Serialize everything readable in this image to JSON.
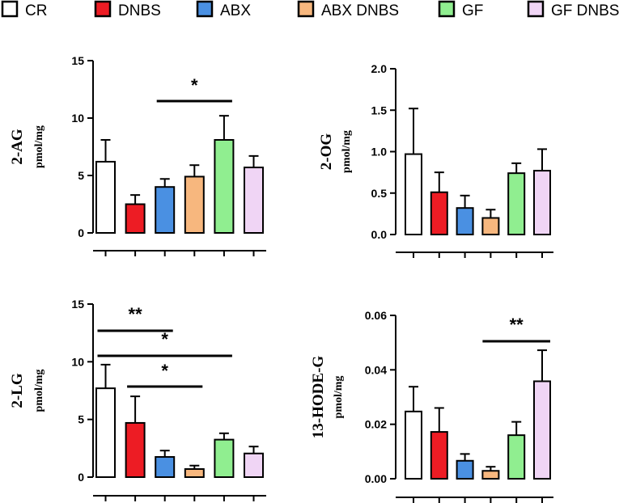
{
  "legend": {
    "entries": [
      {
        "label": "CR",
        "color": "#ffffff"
      },
      {
        "label": "DNBS",
        "color": "#ed1c24"
      },
      {
        "label": "ABX",
        "color": "#4a90e2"
      },
      {
        "label": "ABX DNBS",
        "color": "#f7b77e"
      },
      {
        "label": "GF",
        "color": "#90ee90"
      },
      {
        "label": "GF DNBS",
        "color": "#f0d5f5"
      }
    ]
  },
  "chart_data": [
    {
      "type": "bar",
      "title": "",
      "ylabel": "2-AG",
      "yunit": "pmol/mg",
      "categories": [
        "CR",
        "DNBS",
        "ABX",
        "ABX DNBS",
        "GF",
        "GF DNBS"
      ],
      "values": [
        6.2,
        2.5,
        4.0,
        4.9,
        8.1,
        5.7
      ],
      "errors": [
        1.9,
        0.8,
        0.7,
        1.0,
        2.1,
        1.0
      ],
      "ylim": [
        0,
        15
      ],
      "yticks": [
        "0",
        "5",
        "10",
        "15"
      ],
      "significance": [
        {
          "from": 2,
          "to": 4,
          "label": "*"
        }
      ]
    },
    {
      "type": "bar",
      "title": "",
      "ylabel": "2-OG",
      "yunit": "pmol/mg",
      "categories": [
        "CR",
        "DNBS",
        "ABX",
        "ABX DNBS",
        "GF",
        "GF DNBS"
      ],
      "values": [
        0.97,
        0.51,
        0.32,
        0.2,
        0.74,
        0.77
      ],
      "errors": [
        0.55,
        0.24,
        0.15,
        0.1,
        0.12,
        0.26
      ],
      "ylim": [
        0,
        2.0
      ],
      "yticks": [
        "0.0",
        "0.5",
        "1.0",
        "1.5",
        "2.0"
      ],
      "significance": []
    },
    {
      "type": "bar",
      "title": "",
      "ylabel": "2-LG",
      "yunit": "pmol/mg",
      "categories": [
        "CR",
        "DNBS",
        "ABX",
        "ABX DNBS",
        "GF",
        "GF DNBS"
      ],
      "values": [
        7.7,
        4.7,
        1.75,
        0.7,
        3.25,
        2.05
      ],
      "errors": [
        2.05,
        2.3,
        0.55,
        0.3,
        0.55,
        0.6
      ],
      "ylim": [
        0,
        15
      ],
      "yticks": [
        "0",
        "5",
        "10",
        "15"
      ],
      "significance": [
        {
          "from": 0,
          "to": 2,
          "label": "**"
        },
        {
          "from": 0,
          "to": 4,
          "label": "*"
        },
        {
          "from": 1,
          "to": 3,
          "label": "*"
        }
      ]
    },
    {
      "type": "bar",
      "title": "",
      "ylabel": "13-HODE-G",
      "yunit": "pmol/mg",
      "categories": [
        "CR",
        "DNBS",
        "ABX",
        "ABX DNBS",
        "GF",
        "GF DNBS"
      ],
      "values": [
        0.0247,
        0.0172,
        0.0066,
        0.0029,
        0.016,
        0.0358
      ],
      "errors": [
        0.0091,
        0.0088,
        0.0025,
        0.0015,
        0.0049,
        0.0114
      ],
      "ylim": [
        0,
        0.06
      ],
      "yticks": [
        "0.00",
        "0.02",
        "0.04",
        "0.06"
      ],
      "significance": [
        {
          "from": 3,
          "to": 5,
          "label": "**"
        }
      ]
    }
  ]
}
